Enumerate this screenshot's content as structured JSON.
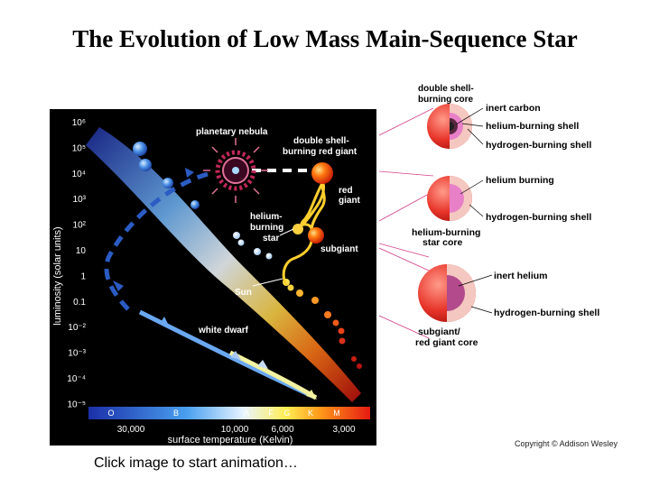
{
  "title": "The Evolution of Low Mass Main-Sequence Star",
  "caption": "Click image to start animation…",
  "copyright": "Copyright © Addison Wesley",
  "diagram": {
    "y_axis_label": "luminosity (solar units)",
    "y_ticks": [
      "10⁶",
      "10⁵",
      "10⁴",
      "10³",
      "10²",
      "10",
      "1",
      "0.1",
      "10⁻²",
      "10⁻³",
      "10⁻⁴",
      "10⁻⁵"
    ],
    "spectral_classes": [
      "O",
      "B",
      "A",
      "F",
      "G",
      "K",
      "M"
    ],
    "temp_ticks": [
      "30,000",
      "10,000",
      "6,000",
      "3,000"
    ],
    "x_axis_label": "surface temperature (Kelvin)",
    "labels": {
      "planetary_nebula": "planetary nebula",
      "double_shell_1": "double shell-",
      "double_shell_2": "burning red giant",
      "red_giant_1": "red",
      "red_giant_2": "giant",
      "helium_1": "helium-",
      "helium_2": "burning",
      "helium_3": "star",
      "subgiant": "subgiant",
      "sun": "Sun",
      "white_dwarf": "white dwarf"
    }
  },
  "shells": {
    "top_header_1": "double shell-",
    "top_header_2": "burning core",
    "inert_carbon": "inert carbon",
    "helium_burning_shell": "helium-burning shell",
    "hydrogen_burning_shell_1": "hydrogen-burning shell",
    "helium_burning": "helium burning",
    "hydrogen_burning_shell_2": "hydrogen-burning shell",
    "he_core_1": "helium-burning",
    "he_core_2": "star core",
    "inert_helium": "inert helium",
    "hydrogen_burning_shell_3": "hydrogen-burning shell",
    "bottom_1": "subgiant/",
    "bottom_2": "red giant core"
  }
}
